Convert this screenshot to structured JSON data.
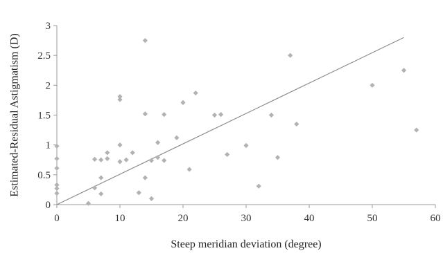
{
  "chart_data": {
    "type": "scatter",
    "title": "",
    "xlabel": "Steep meridian deviation (degree)",
    "ylabel": "Estimated-Residual Astigmatism (D)",
    "xlim": [
      0,
      60
    ],
    "ylim": [
      0,
      3
    ],
    "xticks": [
      "0",
      "10",
      "20",
      "30",
      "40",
      "50",
      "60"
    ],
    "yticks": [
      "0",
      "0.5",
      "1",
      "1.5",
      "2",
      "2.5",
      "3"
    ],
    "grid": false,
    "legend": "none",
    "marker_color": "#b2b2b2",
    "trendline": {
      "x": [
        0,
        55
      ],
      "y": [
        0,
        2.8
      ],
      "color": "#8c8c8c"
    },
    "points": [
      {
        "x": 0,
        "y": 0.98
      },
      {
        "x": 0,
        "y": 0.77
      },
      {
        "x": 0,
        "y": 0.61
      },
      {
        "x": 0,
        "y": 0.33
      },
      {
        "x": 0,
        "y": 0.27
      },
      {
        "x": 0,
        "y": 0.19
      },
      {
        "x": 5,
        "y": 0.02
      },
      {
        "x": 6,
        "y": 0.76
      },
      {
        "x": 6,
        "y": 0.28
      },
      {
        "x": 7,
        "y": 0.75
      },
      {
        "x": 7,
        "y": 0.45
      },
      {
        "x": 7,
        "y": 0.18
      },
      {
        "x": 8,
        "y": 0.87
      },
      {
        "x": 8,
        "y": 0.77
      },
      {
        "x": 10,
        "y": 1.81
      },
      {
        "x": 10,
        "y": 1.76
      },
      {
        "x": 10,
        "y": 1.0
      },
      {
        "x": 10,
        "y": 0.72
      },
      {
        "x": 11,
        "y": 0.75
      },
      {
        "x": 12,
        "y": 0.87
      },
      {
        "x": 13,
        "y": 0.2
      },
      {
        "x": 14,
        "y": 2.75
      },
      {
        "x": 14,
        "y": 1.52
      },
      {
        "x": 14,
        "y": 0.45
      },
      {
        "x": 15,
        "y": 0.74
      },
      {
        "x": 15,
        "y": 0.1
      },
      {
        "x": 16,
        "y": 1.04
      },
      {
        "x": 16,
        "y": 0.79
      },
      {
        "x": 17,
        "y": 1.51
      },
      {
        "x": 17,
        "y": 0.74
      },
      {
        "x": 19,
        "y": 1.12
      },
      {
        "x": 20,
        "y": 1.71
      },
      {
        "x": 21,
        "y": 0.59
      },
      {
        "x": 22,
        "y": 1.87
      },
      {
        "x": 25,
        "y": 1.5
      },
      {
        "x": 26,
        "y": 1.51
      },
      {
        "x": 27,
        "y": 0.84
      },
      {
        "x": 30,
        "y": 0.99
      },
      {
        "x": 32,
        "y": 0.31
      },
      {
        "x": 34,
        "y": 1.5
      },
      {
        "x": 35,
        "y": 0.79
      },
      {
        "x": 37,
        "y": 2.5
      },
      {
        "x": 38,
        "y": 1.35
      },
      {
        "x": 50,
        "y": 2.0
      },
      {
        "x": 55,
        "y": 2.25
      },
      {
        "x": 57,
        "y": 1.25
      }
    ]
  }
}
